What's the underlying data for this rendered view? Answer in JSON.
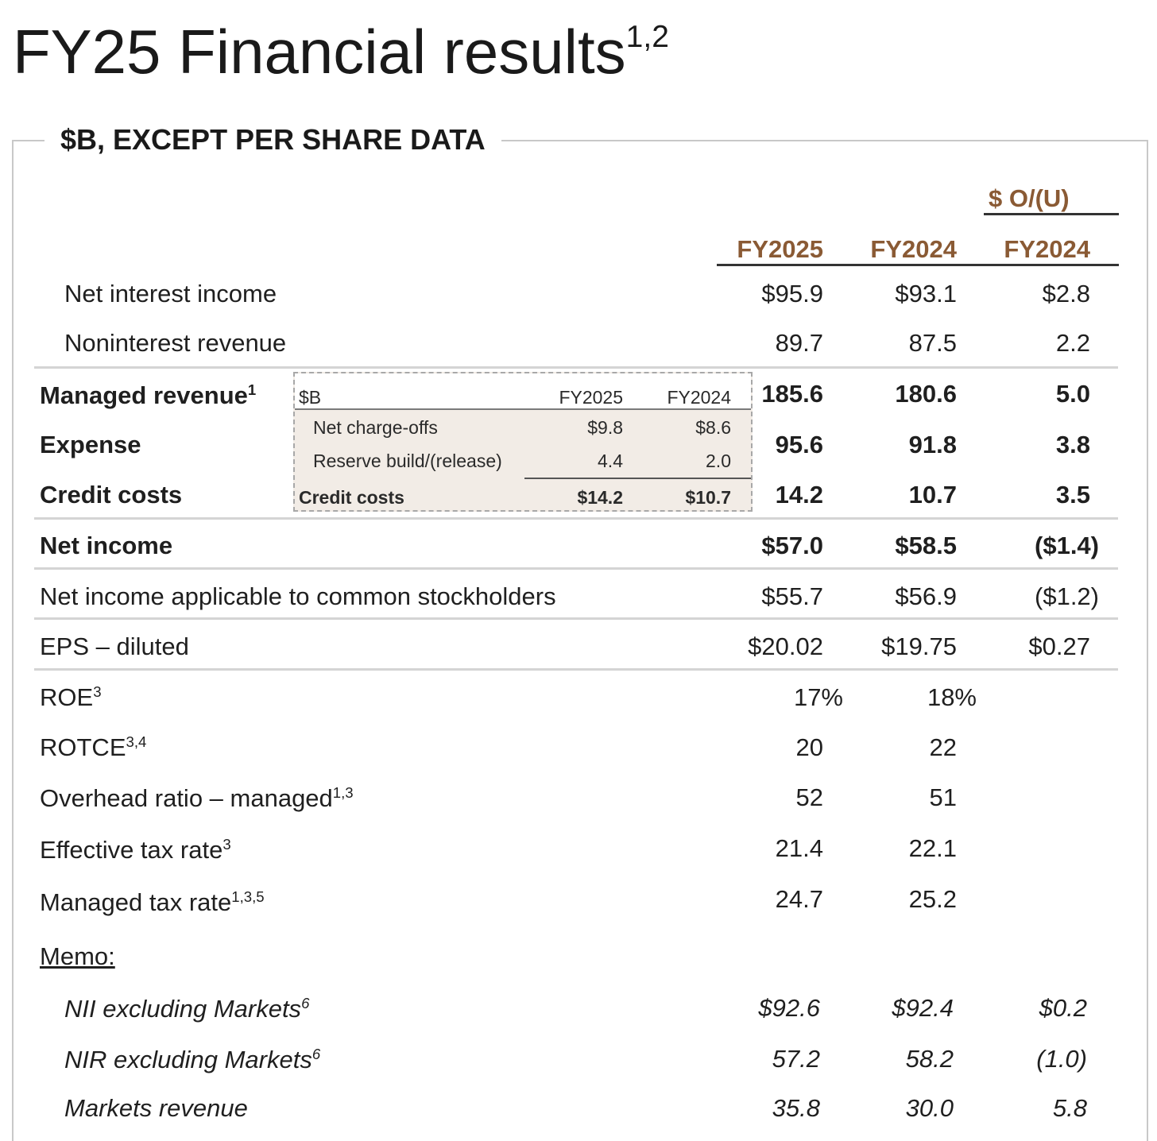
{
  "title": "FY25 Financial results",
  "title_footnote": "1,2",
  "frame_label": "$B, EXCEPT PER SHARE DATA",
  "columns": {
    "change_group": "$ O/(U)",
    "c1": "FY2025",
    "c2": "FY2024",
    "c3": "FY2024"
  },
  "rows": [
    {
      "label": "Net interest income",
      "fn": "",
      "v1": "$95.9",
      "v2": "$93.1",
      "v3": "$2.8"
    },
    {
      "label": "Noninterest revenue",
      "fn": "",
      "v1": "89.7",
      "v2": "87.5",
      "v3": "2.2"
    },
    {
      "label": "Managed revenue",
      "fn": "1",
      "v1": "185.6",
      "v2": "180.6",
      "v3": "5.0"
    },
    {
      "label": "Expense",
      "fn": "",
      "v1": "95.6",
      "v2": "91.8",
      "v3": "3.8"
    },
    {
      "label": "Credit costs",
      "fn": "",
      "v1": "14.2",
      "v2": "10.7",
      "v3": "3.5"
    },
    {
      "label": "Net income",
      "fn": "",
      "v1": "$57.0",
      "v2": "$58.5",
      "v3": "($1.4)"
    },
    {
      "label": "Net income applicable to common stockholders",
      "fn": "",
      "v1": "$55.7",
      "v2": "$56.9",
      "v3": "($1.2)"
    },
    {
      "label": "EPS – diluted",
      "fn": "",
      "v1": "$20.02",
      "v2": "$19.75",
      "v3": "$0.27"
    },
    {
      "label": "ROE",
      "fn": "3",
      "v1": "17%",
      "v2": "18%",
      "v3": ""
    },
    {
      "label": "ROTCE",
      "fn": "3,4",
      "v1": "20",
      "v2": "22",
      "v3": ""
    },
    {
      "label": "Overhead ratio – managed",
      "fn": "1,3",
      "v1": "52",
      "v2": "51",
      "v3": ""
    },
    {
      "label": "Effective tax rate",
      "fn": "3",
      "v1": "21.4",
      "v2": "22.1",
      "v3": ""
    },
    {
      "label": "Managed tax rate",
      "fn": "1,3,5",
      "v1": "24.7",
      "v2": "25.2",
      "v3": ""
    }
  ],
  "memo": {
    "label": "Memo:",
    "rows": [
      {
        "label": "NII excluding Markets",
        "fn": "6",
        "v1": "$92.6",
        "v2": "$92.4",
        "v3": "$0.2"
      },
      {
        "label": "NIR excluding Markets",
        "fn": "6",
        "v1": "57.2",
        "v2": "58.2",
        "v3": "(1.0)"
      },
      {
        "label": "Markets revenue",
        "fn": "",
        "v1": "35.8",
        "v2": "30.0",
        "v3": "5.8"
      }
    ]
  },
  "inset": {
    "unit": "$B",
    "col1": "FY2025",
    "col2": "FY2024",
    "rows": [
      {
        "label": "Net charge-offs",
        "v1": "$9.8",
        "v2": "$8.6"
      },
      {
        "label": "Reserve build/(release)",
        "v1": "4.4",
        "v2": "2.0"
      }
    ],
    "total": {
      "label": "Credit costs",
      "v1": "$14.2",
      "v2": "$10.7"
    }
  },
  "colors": {
    "header_accent": "#8a5a34",
    "inset_bg": "#f2ece6"
  }
}
